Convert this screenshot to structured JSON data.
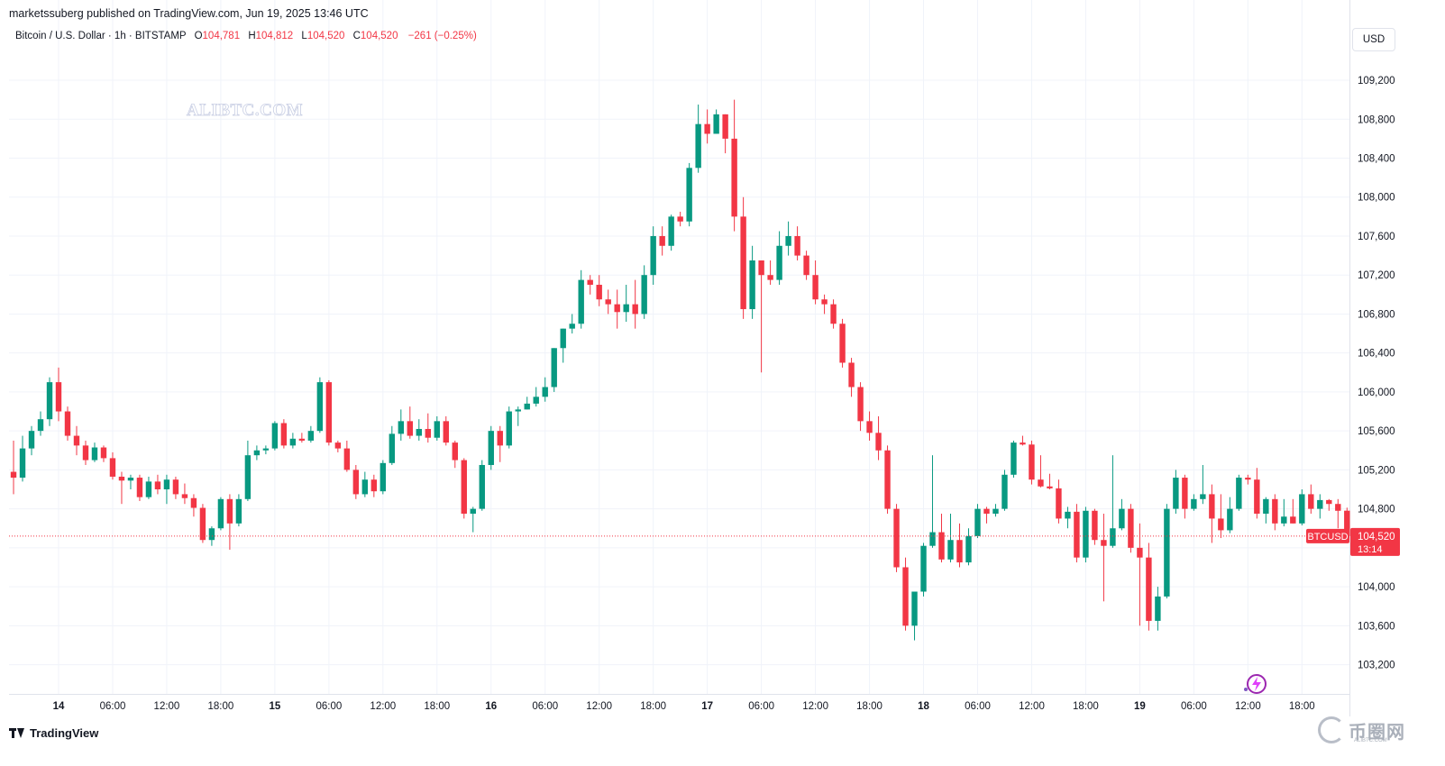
{
  "header": {
    "published": "marketssuberg published on TradingView.com, Jun 19, 2025 13:46 UTC"
  },
  "legend": {
    "symbol": "Bitcoin / U.S. Dollar · 1h · BITSTAMP",
    "o_label": "O",
    "o": "104,781",
    "h_label": "H",
    "h": "104,812",
    "l_label": "L",
    "l": "104,520",
    "c_label": "C",
    "c": "104,520",
    "change": "−261 (−0.25%)"
  },
  "currency_button": "USD",
  "watermark": "ALIBTC.COM",
  "price_tag": {
    "ticker": "BTCUSD",
    "price": "104,520",
    "countdown": "13:14"
  },
  "footer_brand": "TradingView",
  "corner_brand": {
    "name": "币圈网",
    "url": "ALIBTC.COM"
  },
  "colors": {
    "up": "#089981",
    "down": "#f23645",
    "grid": "#f0f3fa",
    "axis_text": "#131722"
  },
  "chart_data": {
    "type": "candlestick",
    "title": "",
    "ylim": [
      102900,
      109450
    ],
    "y_ticks": [
      "103,200",
      "103,600",
      "104,000",
      "104,400",
      "104,800",
      "105,200",
      "105,600",
      "106,000",
      "106,400",
      "106,800",
      "107,200",
      "107,600",
      "108,000",
      "108,400",
      "108,800",
      "109,200"
    ],
    "x_ticks": [
      "14",
      "06:00",
      "12:00",
      "18:00",
      "15",
      "06:00",
      "12:00",
      "18:00",
      "16",
      "06:00",
      "12:00",
      "18:00",
      "17",
      "06:00",
      "12:00",
      "18:00",
      "18",
      "06:00",
      "12:00",
      "18:00",
      "19",
      "06:00",
      "12:00",
      "18:00"
    ],
    "x_tick_hours": [
      0,
      6,
      12,
      18,
      24,
      30,
      36,
      42,
      48,
      54,
      60,
      66,
      72,
      78,
      84,
      90,
      96,
      102,
      108,
      114,
      120,
      126,
      132,
      138
    ],
    "first_candle_hour": -5,
    "last_price": 104520,
    "grid": true,
    "ohlc": [
      [
        105180,
        105500,
        104950,
        105120
      ],
      [
        105120,
        105550,
        105080,
        105420
      ],
      [
        105420,
        105650,
        105350,
        105600
      ],
      [
        105600,
        105800,
        105550,
        105720
      ],
      [
        105720,
        106150,
        105650,
        106100
      ],
      [
        106100,
        106250,
        105700,
        105800
      ],
      [
        105800,
        105850,
        105500,
        105550
      ],
      [
        105550,
        105650,
        105350,
        105450
      ],
      [
        105450,
        105500,
        105250,
        105300
      ],
      [
        105300,
        105480,
        105280,
        105430
      ],
      [
        105430,
        105450,
        105280,
        105320
      ],
      [
        105320,
        105380,
        105100,
        105130
      ],
      [
        105130,
        105180,
        104850,
        105090
      ],
      [
        105090,
        105150,
        105000,
        105120
      ],
      [
        105120,
        105150,
        104880,
        104920
      ],
      [
        104920,
        105130,
        104900,
        105080
      ],
      [
        105080,
        105150,
        104950,
        105000
      ],
      [
        105000,
        105150,
        104850,
        105100
      ],
      [
        105100,
        105130,
        104900,
        104950
      ],
      [
        104950,
        105060,
        104850,
        104910
      ],
      [
        104910,
        104950,
        104720,
        104810
      ],
      [
        104810,
        104850,
        104450,
        104480
      ],
      [
        104480,
        104620,
        104420,
        104600
      ],
      [
        104600,
        104920,
        104580,
        104900
      ],
      [
        104900,
        104950,
        104380,
        104650
      ],
      [
        104650,
        104950,
        104620,
        104900
      ],
      [
        104900,
        105500,
        104880,
        105350
      ],
      [
        105350,
        105450,
        105300,
        105400
      ],
      [
        105400,
        105450,
        105360,
        105420
      ],
      [
        105420,
        105700,
        105400,
        105680
      ],
      [
        105680,
        105720,
        105420,
        105450
      ],
      [
        105450,
        105580,
        105420,
        105520
      ],
      [
        105520,
        105580,
        105480,
        105500
      ],
      [
        105500,
        105650,
        105480,
        105600
      ],
      [
        105600,
        106150,
        105580,
        106100
      ],
      [
        106100,
        106120,
        105450,
        105480
      ],
      [
        105480,
        105500,
        105380,
        105420
      ],
      [
        105420,
        105500,
        105180,
        105200
      ],
      [
        105200,
        105250,
        104900,
        104950
      ],
      [
        104950,
        105180,
        104920,
        105100
      ],
      [
        105100,
        105150,
        104920,
        104980
      ],
      [
        104980,
        105300,
        104950,
        105270
      ],
      [
        105270,
        105650,
        105250,
        105570
      ],
      [
        105570,
        105820,
        105500,
        105700
      ],
      [
        105700,
        105850,
        105520,
        105550
      ],
      [
        105550,
        105720,
        105500,
        105620
      ],
      [
        105620,
        105780,
        105480,
        105530
      ],
      [
        105530,
        105750,
        105500,
        105700
      ],
      [
        105700,
        105750,
        105450,
        105480
      ],
      [
        105480,
        105500,
        105220,
        105300
      ],
      [
        105300,
        105320,
        104700,
        104750
      ],
      [
        104750,
        104820,
        104560,
        104800
      ],
      [
        104800,
        105300,
        104780,
        105250
      ],
      [
        105250,
        105650,
        105200,
        105600
      ],
      [
        105600,
        105650,
        105280,
        105450
      ],
      [
        105450,
        105850,
        105420,
        105800
      ],
      [
        105800,
        105850,
        105650,
        105820
      ],
      [
        105820,
        105950,
        105820,
        105880
      ],
      [
        105880,
        106050,
        105850,
        105950
      ],
      [
        105950,
        106150,
        105900,
        106050
      ],
      [
        106050,
        106450,
        106000,
        106450
      ],
      [
        106450,
        106650,
        106300,
        106650
      ],
      [
        106650,
        106800,
        106600,
        106700
      ],
      [
        106700,
        107250,
        106650,
        107150
      ],
      [
        107150,
        107200,
        107000,
        107100
      ],
      [
        107100,
        107200,
        106880,
        106950
      ],
      [
        106950,
        107050,
        106800,
        106900
      ],
      [
        106900,
        107050,
        106650,
        106820
      ],
      [
        106820,
        107100,
        106720,
        106900
      ],
      [
        106900,
        107150,
        106650,
        106800
      ],
      [
        106800,
        107300,
        106750,
        107200
      ],
      [
        107200,
        107700,
        107100,
        107600
      ],
      [
        107600,
        107700,
        107400,
        107500
      ],
      [
        107500,
        107820,
        107450,
        107800
      ],
      [
        107800,
        107850,
        107700,
        107750
      ],
      [
        107750,
        108350,
        107700,
        108300
      ],
      [
        108300,
        108950,
        108250,
        108750
      ],
      [
        108750,
        108900,
        108550,
        108650
      ],
      [
        108650,
        108900,
        108650,
        108850
      ],
      [
        108850,
        108850,
        108450,
        108600
      ],
      [
        108600,
        109000,
        107650,
        107800
      ],
      [
        107800,
        108000,
        106750,
        106850
      ],
      [
        106850,
        107500,
        106750,
        107350
      ],
      [
        107350,
        107350,
        106200,
        107200
      ],
      [
        107200,
        107350,
        107100,
        107150
      ],
      [
        107150,
        107650,
        107100,
        107500
      ],
      [
        107500,
        107750,
        107400,
        107600
      ],
      [
        107600,
        107700,
        107350,
        107400
      ],
      [
        107400,
        107450,
        107150,
        107200
      ],
      [
        107200,
        107350,
        106900,
        106950
      ],
      [
        106950,
        107000,
        106800,
        106900
      ],
      [
        106900,
        106950,
        106650,
        106700
      ],
      [
        106700,
        106750,
        106250,
        106300
      ],
      [
        106300,
        106350,
        105950,
        106050
      ],
      [
        106050,
        106100,
        105600,
        105700
      ],
      [
        105700,
        105800,
        105500,
        105580
      ],
      [
        105580,
        105750,
        105300,
        105400
      ],
      [
        105400,
        105450,
        104750,
        104800
      ],
      [
        104800,
        104850,
        104150,
        104200
      ],
      [
        104200,
        104300,
        103550,
        103600
      ],
      [
        103600,
        103950,
        103450,
        103950
      ],
      [
        103950,
        104450,
        103900,
        104420
      ],
      [
        104420,
        105350,
        104400,
        104560
      ],
      [
        104560,
        104750,
        104250,
        104280
      ],
      [
        104280,
        104750,
        104250,
        104480
      ],
      [
        104480,
        104650,
        104200,
        104250
      ],
      [
        104250,
        104600,
        104220,
        104520
      ],
      [
        104520,
        104850,
        104500,
        104800
      ],
      [
        104800,
        104820,
        104650,
        104750
      ],
      [
        104750,
        104850,
        104720,
        104800
      ],
      [
        104800,
        105200,
        104780,
        105150
      ],
      [
        105150,
        105500,
        105120,
        105480
      ],
      [
        105480,
        105550,
        105450,
        105460
      ],
      [
        105460,
        105500,
        105050,
        105100
      ],
      [
        105100,
        105350,
        105020,
        105030
      ],
      [
        105030,
        105160,
        105000,
        105010
      ],
      [
        105010,
        105100,
        104650,
        104700
      ],
      [
        104700,
        104820,
        104600,
        104770
      ],
      [
        104770,
        104850,
        104250,
        104300
      ],
      [
        104300,
        104820,
        104250,
        104780
      ],
      [
        104780,
        104800,
        104430,
        104480
      ],
      [
        104480,
        104750,
        103850,
        104420
      ],
      [
        104420,
        105350,
        104400,
        104600
      ],
      [
        104600,
        104900,
        104580,
        104800
      ],
      [
        104800,
        104850,
        104350,
        104400
      ],
      [
        104400,
        104650,
        103600,
        104300
      ],
      [
        104300,
        104450,
        103550,
        103650
      ],
      [
        103650,
        104000,
        103550,
        103900
      ],
      [
        103900,
        104850,
        103880,
        104800
      ],
      [
        104800,
        105200,
        104750,
        105120
      ],
      [
        105120,
        105150,
        104700,
        104800
      ],
      [
        104800,
        104950,
        104780,
        104900
      ],
      [
        104900,
        105250,
        104850,
        104950
      ],
      [
        104950,
        105050,
        104450,
        104700
      ],
      [
        104700,
        104950,
        104500,
        104580
      ],
      [
        104580,
        104920,
        104550,
        104800
      ],
      [
        104800,
        105150,
        104780,
        105120
      ],
      [
        105120,
        105150,
        105050,
        105100
      ],
      [
        105100,
        105220,
        104700,
        104750
      ],
      [
        104750,
        104920,
        104650,
        104900
      ],
      [
        104900,
        104950,
        104580,
        104650
      ],
      [
        104650,
        104900,
        104620,
        104720
      ],
      [
        104720,
        104900,
        104650,
        104650
      ],
      [
        104650,
        105000,
        104630,
        104950
      ],
      [
        104950,
        105050,
        104750,
        104800
      ],
      [
        104800,
        104950,
        104700,
        104890
      ],
      [
        104890,
        104900,
        104780,
        104850
      ],
      [
        104850,
        104900,
        104600,
        104780
      ],
      [
        104781,
        104812,
        104520,
        104520
      ]
    ]
  }
}
